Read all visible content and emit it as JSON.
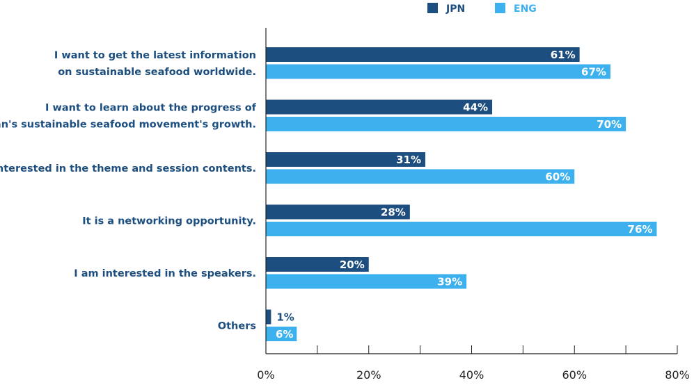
{
  "chart_data": {
    "type": "bar",
    "orientation": "horizontal",
    "title": "",
    "xlabel": "",
    "ylabel": "",
    "xlim": [
      0,
      80
    ],
    "x_ticks": [
      "0%",
      "20%",
      "40%",
      "60%",
      "80%"
    ],
    "x_tick_values": [
      0,
      20,
      40,
      60,
      80
    ],
    "legend_position": "top-right",
    "categories": [
      [
        "I want to get the latest information",
        "on sustainable seafood worldwide."
      ],
      [
        "I want to learn about the progress of",
        "Japan's sustainable seafood movement's growth."
      ],
      [
        "I am interested in the theme and session contents."
      ],
      [
        "It is a networking opportunity."
      ],
      [
        "I am interested in the speakers."
      ],
      [
        "Others"
      ]
    ],
    "series": [
      {
        "name": "JPN",
        "color": "#1c4e7f",
        "values": [
          61,
          44,
          31,
          28,
          20,
          1
        ],
        "labels": [
          "61%",
          "44%",
          "31%",
          "28%",
          "20%",
          "1%"
        ]
      },
      {
        "name": "ENG",
        "color": "#3db1ee",
        "values": [
          67,
          70,
          60,
          76,
          39,
          6
        ],
        "labels": [
          "67%",
          "70%",
          "60%",
          "76%",
          "39%",
          "6%"
        ]
      }
    ]
  }
}
